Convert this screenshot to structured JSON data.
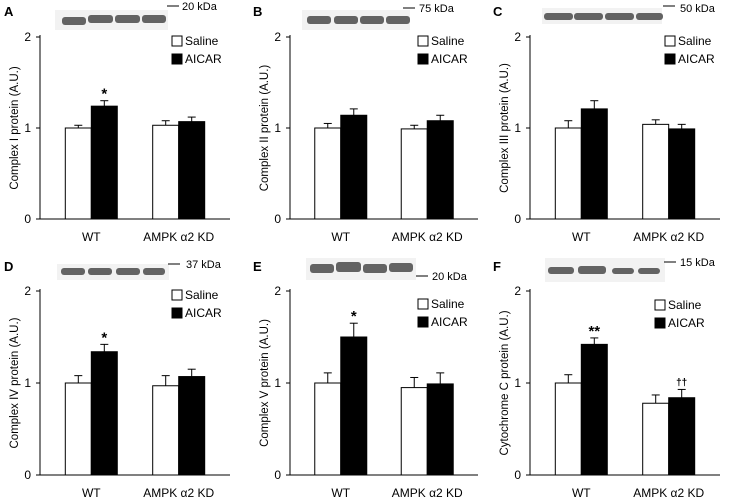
{
  "legend": {
    "saline": "Saline",
    "aicar": "AICAR"
  },
  "colors": {
    "saline_fill": "#ffffff",
    "aicar_fill": "#000000",
    "axis": "#000000",
    "blot_band": "#4a4a4a"
  },
  "chart_data": [
    {
      "type": "bar",
      "panel": "A",
      "ylabel": "Complex I protein (A.U.)",
      "categories": [
        "WT",
        "AMPK α2 KD"
      ],
      "ylim": [
        0,
        2
      ],
      "yticks": [
        "0",
        "1",
        "2"
      ],
      "blot_label": "20 kDa",
      "legend_placement": "top-right",
      "grid": false,
      "series": [
        {
          "name": "Saline",
          "values": [
            1.0,
            1.03
          ],
          "errors": [
            0.03,
            0.05
          ]
        },
        {
          "name": "AICAR",
          "values": [
            1.24,
            1.07
          ],
          "errors": [
            0.06,
            0.05
          ]
        }
      ],
      "annotations": [
        {
          "category": 0,
          "series": 1,
          "text": "*"
        }
      ]
    },
    {
      "type": "bar",
      "panel": "B",
      "ylabel": "Complex II protein (A.U.)",
      "categories": [
        "WT",
        "AMPK α2 KD"
      ],
      "ylim": [
        0,
        2
      ],
      "yticks": [
        "0",
        "1",
        "2"
      ],
      "blot_label": "75 kDa",
      "legend_placement": "top-right",
      "grid": false,
      "series": [
        {
          "name": "Saline",
          "values": [
            1.0,
            0.99
          ],
          "errors": [
            0.05,
            0.04
          ]
        },
        {
          "name": "AICAR",
          "values": [
            1.14,
            1.08
          ],
          "errors": [
            0.07,
            0.06
          ]
        }
      ],
      "annotations": []
    },
    {
      "type": "bar",
      "panel": "C",
      "ylabel": "Complex III protein (A.U.)",
      "categories": [
        "WT",
        "AMPK α2 KD"
      ],
      "ylim": [
        0,
        2
      ],
      "yticks": [
        "0",
        "1",
        "2"
      ],
      "blot_label": "50 kDa",
      "legend_placement": "top-right",
      "grid": false,
      "series": [
        {
          "name": "Saline",
          "values": [
            1.0,
            1.04
          ],
          "errors": [
            0.08,
            0.05
          ]
        },
        {
          "name": "AICAR",
          "values": [
            1.21,
            0.99
          ],
          "errors": [
            0.09,
            0.05
          ]
        }
      ],
      "annotations": []
    },
    {
      "type": "bar",
      "panel": "D",
      "ylabel": "Complex IV protein (A.U.)",
      "categories": [
        "WT",
        "AMPK α2 KD"
      ],
      "ylim": [
        0,
        2
      ],
      "yticks": [
        "0",
        "1",
        "2"
      ],
      "blot_label": "37 kDa",
      "legend_placement": "top-right",
      "grid": false,
      "series": [
        {
          "name": "Saline",
          "values": [
            1.0,
            0.97
          ],
          "errors": [
            0.08,
            0.11
          ]
        },
        {
          "name": "AICAR",
          "values": [
            1.34,
            1.07
          ],
          "errors": [
            0.08,
            0.08
          ]
        }
      ],
      "annotations": [
        {
          "category": 0,
          "series": 1,
          "text": "*"
        }
      ]
    },
    {
      "type": "bar",
      "panel": "E",
      "ylabel": "Complex V protein (A.U.)",
      "categories": [
        "WT",
        "AMPK α2 KD"
      ],
      "ylim": [
        0,
        2
      ],
      "yticks": [
        "0",
        "1",
        "2"
      ],
      "blot_label": "20 kDa",
      "legend_placement": "top-right",
      "grid": false,
      "series": [
        {
          "name": "Saline",
          "values": [
            1.0,
            0.95
          ],
          "errors": [
            0.11,
            0.11
          ]
        },
        {
          "name": "AICAR",
          "values": [
            1.5,
            0.99
          ],
          "errors": [
            0.15,
            0.12
          ]
        }
      ],
      "annotations": [
        {
          "category": 0,
          "series": 1,
          "text": "*"
        }
      ]
    },
    {
      "type": "bar",
      "panel": "F",
      "ylabel": "Cytochrome C protein (A.U.)",
      "categories": [
        "WT",
        "AMPK α2 KD"
      ],
      "ylim": [
        0,
        2
      ],
      "yticks": [
        "0",
        "1",
        "2"
      ],
      "blot_label": "15 kDa",
      "legend_placement": "top-right",
      "grid": false,
      "series": [
        {
          "name": "Saline",
          "values": [
            1.0,
            0.78
          ],
          "errors": [
            0.09,
            0.09
          ]
        },
        {
          "name": "AICAR",
          "values": [
            1.42,
            0.84
          ],
          "errors": [
            0.07,
            0.09
          ]
        }
      ],
      "annotations": [
        {
          "category": 0,
          "series": 1,
          "text": "**"
        },
        {
          "category": 1,
          "series": 1,
          "text": "††"
        }
      ]
    }
  ]
}
